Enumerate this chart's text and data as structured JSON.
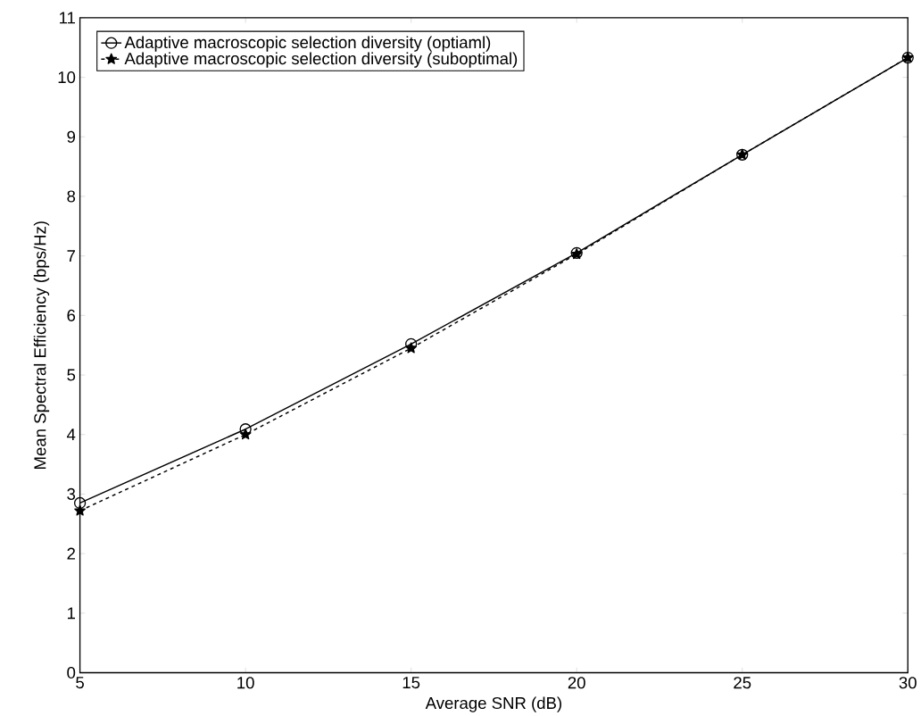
{
  "chart_data": {
    "type": "line",
    "xlabel": "Average SNR (dB)",
    "ylabel": "Mean Spectral Efficiency (bps/Hz)",
    "x": [
      5,
      10,
      15,
      20,
      25,
      30
    ],
    "series": [
      {
        "name": "Adaptive macroscopic selection diversity (optiaml)",
        "color": "#000000",
        "marker": "circle",
        "line_style": "solid",
        "values": [
          2.85,
          4.09,
          5.52,
          7.05,
          8.7,
          10.33
        ]
      },
      {
        "name": "Adaptive macroscopic selection diversity (suboptimal)",
        "color": "#000000",
        "marker": "star",
        "line_style": "dashed",
        "values": [
          2.72,
          4.0,
          5.45,
          7.03,
          8.7,
          10.33
        ]
      }
    ],
    "xlim": [
      5,
      30
    ],
    "xticks": [
      5,
      10,
      15,
      20,
      25,
      30
    ],
    "ylim": [
      0,
      11
    ],
    "yticks": [
      0,
      1,
      2,
      3,
      4,
      5,
      6,
      7,
      8,
      9,
      10,
      11
    ],
    "grid": false,
    "legend": "top left"
  }
}
